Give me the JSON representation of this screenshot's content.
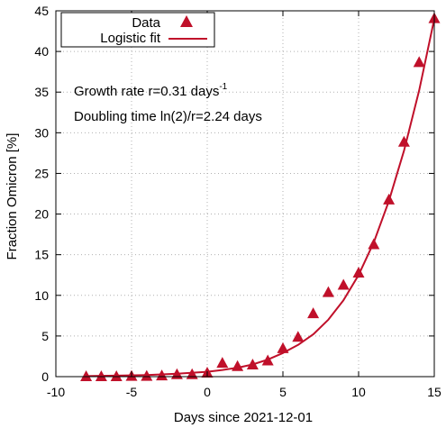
{
  "chart_data": {
    "type": "scatter",
    "xlabel": "Days since 2021-12-01",
    "ylabel": "Fraction Omicron [%]",
    "xlim": [
      -10,
      15
    ],
    "ylim": [
      0,
      45
    ],
    "xticks": [
      -10,
      -5,
      0,
      5,
      10,
      15
    ],
    "yticks": [
      0,
      5,
      10,
      15,
      20,
      25,
      30,
      35,
      40,
      45
    ],
    "grid": true,
    "legend_position": "top-left",
    "legend": [
      "Data",
      "Logistic fit"
    ],
    "annotations": {
      "growth_prefix": "Growth rate r=0.31 days",
      "growth_exponent": "-1",
      "doubling": "Doubling time ln(2)/r=2.24 days"
    },
    "series": [
      {
        "name": "Data",
        "kind": "points",
        "marker": "triangle",
        "color": "#c0102a",
        "x": [
          -8,
          -7,
          -6,
          -5,
          -4,
          -3,
          -2,
          -1,
          0,
          1,
          2,
          3,
          4,
          5,
          6,
          7,
          8,
          9,
          10,
          11,
          12,
          13,
          14,
          15
        ],
        "y": [
          0.05,
          0.05,
          0.05,
          0.1,
          0.1,
          0.15,
          0.3,
          0.3,
          0.5,
          1.7,
          1.3,
          1.5,
          2.0,
          3.5,
          4.9,
          7.8,
          10.4,
          11.3,
          12.8,
          16.3,
          21.8,
          28.9,
          38.7,
          44.1
        ]
      },
      {
        "name": "Logistic fit",
        "kind": "line",
        "color": "#c0102a",
        "x": [
          -8,
          -6,
          -4,
          -2,
          0,
          1,
          2,
          3,
          4,
          5,
          6,
          7,
          8,
          9,
          10,
          11,
          12,
          13,
          14,
          15
        ],
        "y": [
          0.07,
          0.12,
          0.2,
          0.35,
          0.6,
          0.82,
          1.1,
          1.5,
          2.1,
          2.9,
          3.9,
          5.2,
          7.0,
          9.4,
          12.5,
          16.5,
          21.6,
          27.8,
          35.2,
          44.0
        ]
      }
    ]
  }
}
